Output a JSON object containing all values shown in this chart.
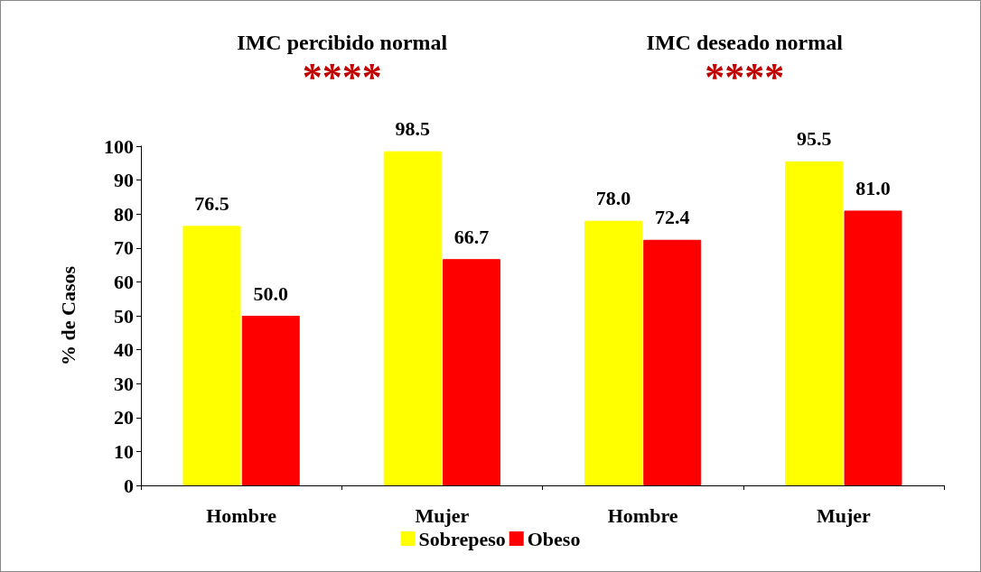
{
  "chart_data": {
    "type": "bar",
    "ylabel": "% de Casos",
    "categories": [
      "Hombre",
      "Mujer",
      "Hombre",
      "Mujer"
    ],
    "series": [
      {
        "name": "Sobrepeso",
        "color": "#ffff00",
        "values": [
          76.5,
          98.5,
          78.0,
          95.5
        ],
        "value_labels": [
          "76.5",
          "98.5",
          "78.0",
          "95.5"
        ]
      },
      {
        "name": "Obeso",
        "color": "#ff0000",
        "values": [
          50.0,
          66.7,
          72.4,
          81.0
        ],
        "value_labels": [
          "50.0",
          "66.7",
          "72.4",
          "81.0"
        ]
      }
    ],
    "ylim": [
      0,
      100
    ],
    "yticks": [
      0,
      10,
      20,
      30,
      40,
      50,
      60,
      70,
      80,
      90,
      100
    ],
    "grid": false,
    "legend": "bottom",
    "annotations": [
      "IMC percibido normal",
      "****",
      "IMC deseado normal",
      "****"
    ]
  }
}
